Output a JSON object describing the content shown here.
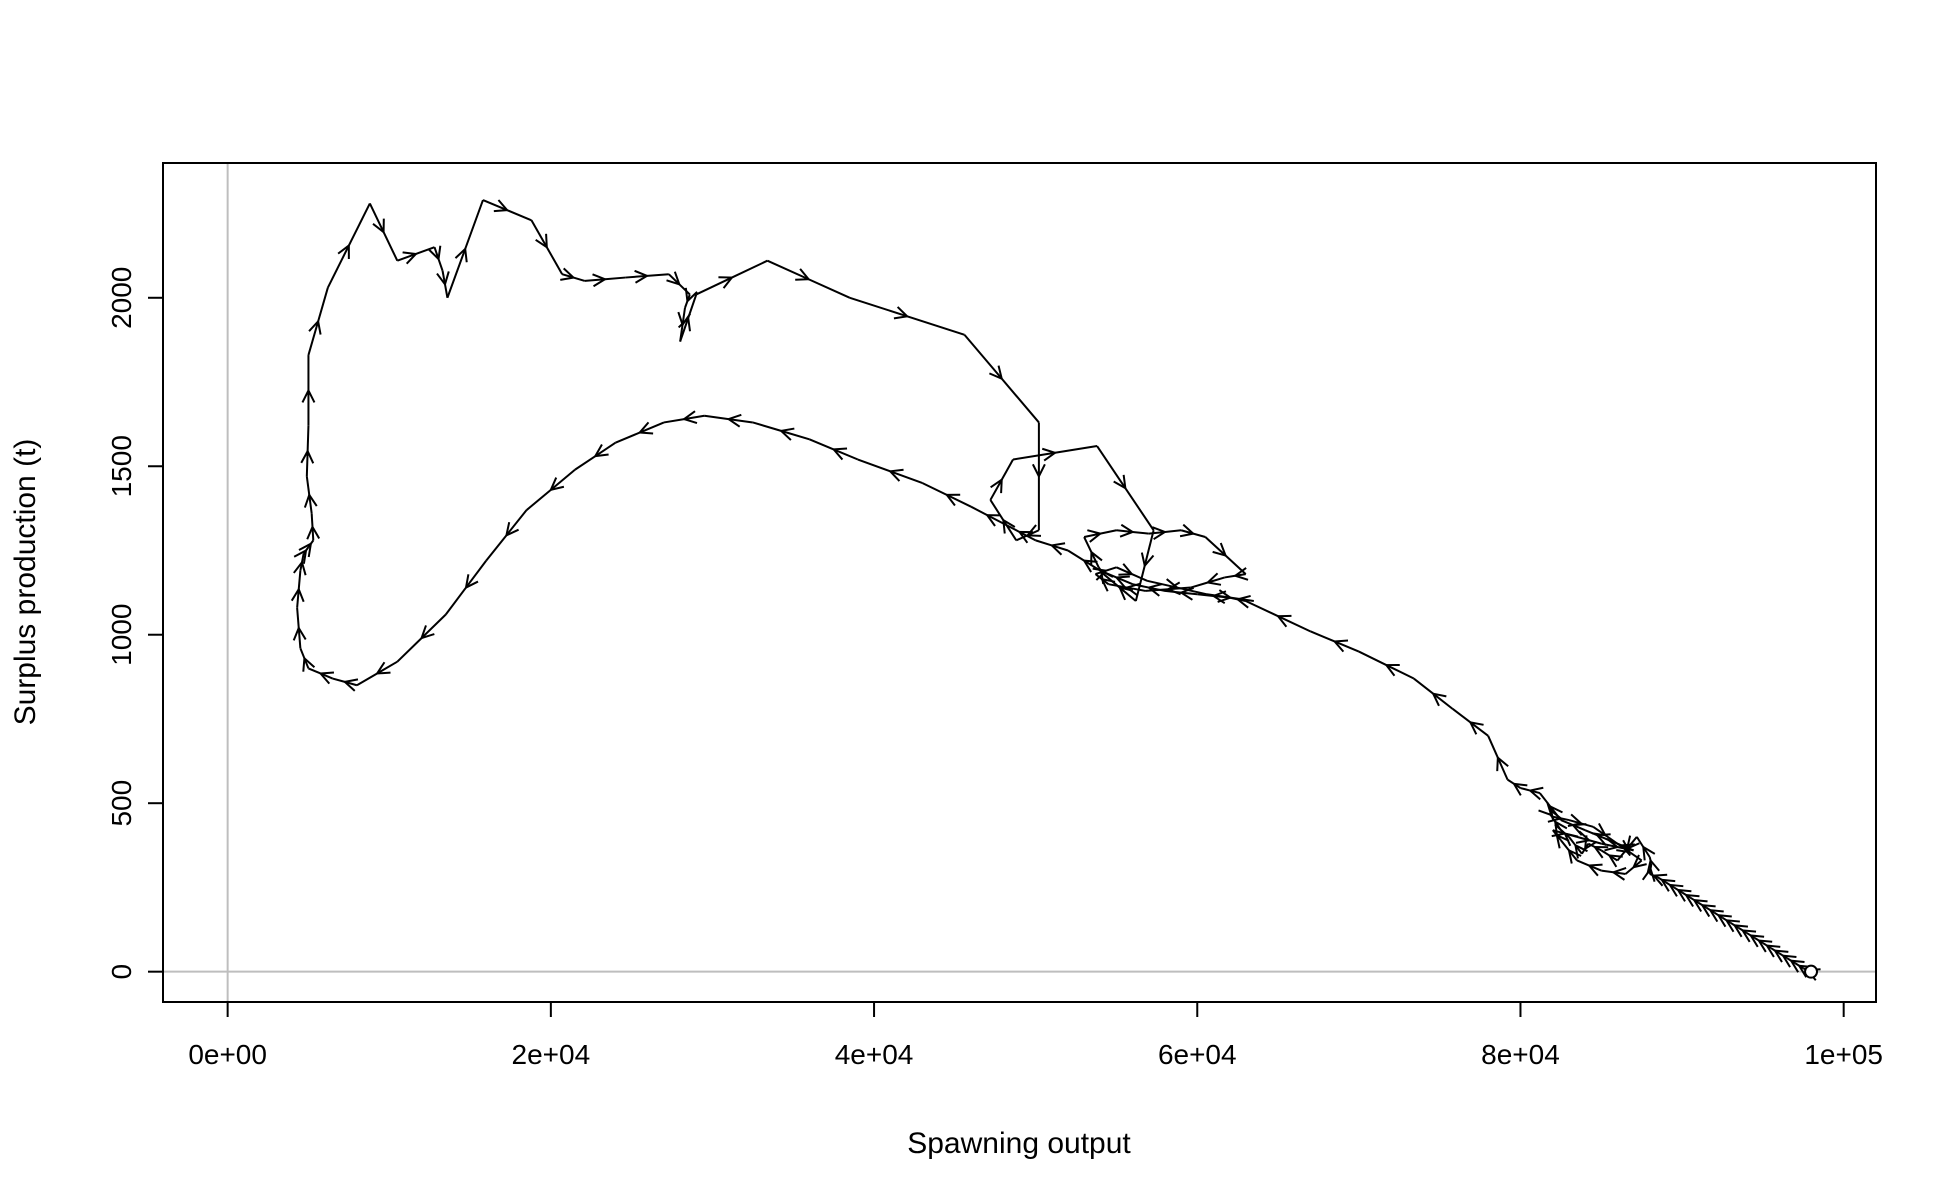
{
  "chart_data": {
    "type": "line",
    "title": "",
    "xlabel": "Spawning output",
    "ylabel": "Surplus production (t)",
    "xlim": [
      -4000,
      102000
    ],
    "ylim": [
      -90,
      2400
    ],
    "x_ticks": [
      0,
      20000,
      40000,
      60000,
      80000,
      100000
    ],
    "x_tick_labels": [
      "0e+00",
      "2e+04",
      "4e+04",
      "6e+04",
      "8e+04",
      "1e+05"
    ],
    "y_ticks": [
      0,
      500,
      1000,
      1500,
      2000
    ],
    "y_tick_labels": [
      "0",
      "500",
      "1000",
      "1500",
      "2000"
    ],
    "reference_lines": {
      "x": 0,
      "y": 0,
      "color": "#bebebe"
    },
    "grid": false,
    "legend": "none",
    "line_color": "#000000",
    "arrows": true,
    "start_marker": "open-circle",
    "series": [
      {
        "x": [
          97980,
          97500,
          97000,
          96500,
          96000,
          95500,
          95000,
          94500,
          94000,
          93500,
          93000,
          92500,
          92000,
          91500,
          91000,
          90500,
          90000,
          89500,
          89000,
          88500,
          88000,
          88100,
          88000,
          87200,
          86000,
          85000,
          84200,
          83800,
          83000,
          82500,
          81800,
          82000,
          83000,
          84500,
          86000,
          87500,
          86500,
          85000,
          83500,
          82500,
          82000,
          83500,
          85000,
          87000,
          85500,
          84000,
          82500,
          81200,
          80000,
          79200,
          78000,
          75800,
          73400,
          70000,
          67000,
          63000,
          62000,
          60000,
          58000,
          56000,
          54000,
          52000,
          50000,
          48000,
          46000,
          43000,
          39000,
          36000,
          32500,
          29500,
          27000,
          24000,
          21500,
          18500,
          16000,
          13500,
          10500,
          8000,
          6500,
          5000,
          4500,
          4300,
          4500,
          4700,
          5000,
          5300,
          5200,
          4900,
          5000,
          5000,
          6200,
          8800,
          10500,
          12800,
          13300,
          13600,
          15800,
          18800,
          20700,
          22100,
          24600,
          27300,
          28600,
          28300,
          28000,
          29000,
          33400,
          38500,
          45600,
          50200,
          50200,
          48800,
          47200,
          48600,
          53800,
          57300,
          56200,
          54200,
          53900,
          53000,
          55000,
          57000,
          59000,
          60500,
          63000,
          61700,
          59600,
          56800,
          54500,
          53700,
          55000,
          56900,
          60600,
          63500
        ],
        "y": [
          0,
          10,
          25,
          40,
          55,
          70,
          85,
          100,
          115,
          130,
          145,
          160,
          175,
          190,
          205,
          220,
          235,
          250,
          265,
          280,
          290,
          320,
          340,
          400,
          330,
          360,
          380,
          350,
          400,
          420,
          470,
          460,
          450,
          430,
          380,
          330,
          290,
          300,
          330,
          390,
          420,
          400,
          380,
          360,
          390,
          420,
          450,
          530,
          545,
          570,
          700,
          780,
          870,
          950,
          1010,
          1100,
          1110,
          1120,
          1130,
          1150,
          1190,
          1250,
          1280,
          1330,
          1380,
          1450,
          1520,
          1580,
          1630,
          1650,
          1630,
          1570,
          1490,
          1370,
          1220,
          1060,
          920,
          850,
          870,
          900,
          960,
          1080,
          1190,
          1240,
          1260,
          1280,
          1360,
          1470,
          1620,
          1830,
          2030,
          2280,
          2110,
          2150,
          2080,
          2000,
          2290,
          2230,
          2070,
          2050,
          2060,
          2070,
          2010,
          1970,
          1870,
          2010,
          2110,
          2000,
          1890,
          1630,
          1310,
          1280,
          1400,
          1520,
          1560,
          1310,
          1100,
          1180,
          1200,
          1290,
          1310,
          1300,
          1310,
          1290,
          1180,
          1170,
          1140,
          1130,
          1150,
          1180,
          1200,
          1160,
          1120,
          1100
        ]
      }
    ]
  }
}
